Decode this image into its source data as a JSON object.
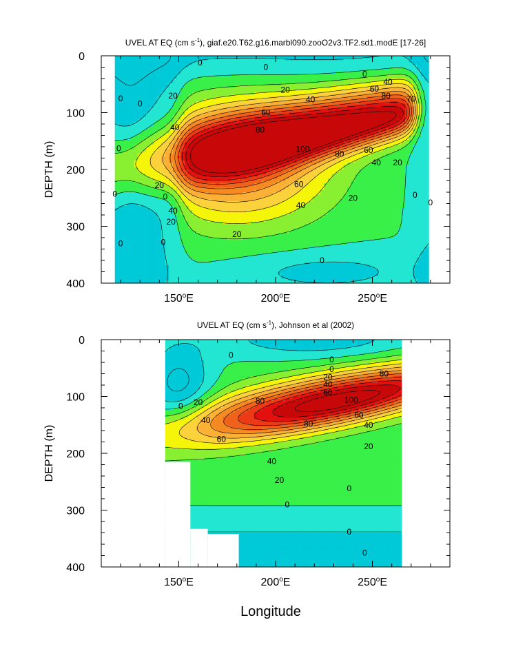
{
  "chart_data": [
    {
      "type": "contour",
      "title_prefix": "UVEL AT EQ (cm s",
      "title_sup": "-1",
      "title_suffix": "), giaf.e20.T62.g16.marbl090.zooO2v3.TF2.sd1.modE [17-26]",
      "ylabel": "DEPTH (m)",
      "xlabel": "",
      "xlim": [
        110,
        290
      ],
      "ylim": [
        400,
        0
      ],
      "xticks": [
        {
          "v": 150,
          "label": "150°E"
        },
        {
          "v": 200,
          "label": "200°E"
        },
        {
          "v": 250,
          "label": "250°E"
        }
      ],
      "yticks": [
        {
          "v": 0,
          "label": "0"
        },
        {
          "v": 100,
          "label": "100"
        },
        {
          "v": 200,
          "label": "200"
        },
        {
          "v": 300,
          "label": "300"
        },
        {
          "v": 400,
          "label": "400"
        }
      ],
      "data_xrange": [
        117,
        279
      ],
      "contour_interval": 10,
      "levels": [
        -10,
        0,
        10,
        20,
        30,
        40,
        50,
        60,
        70,
        80,
        90,
        100,
        110
      ],
      "colors": [
        "#00c9d8",
        "#22e6d2",
        "#38f048",
        "#88f030",
        "#f5f50a",
        "#fcd23c",
        "#fbb036",
        "#f58a22",
        "#f0621c",
        "#ec3a16",
        "#e41010",
        "#c80808"
      ],
      "core": {
        "lon": 237,
        "depth": 125,
        "max_speed": 110
      },
      "contour_labels": [
        {
          "text": "0",
          "lon": 120,
          "depth": 75
        },
        {
          "text": "0",
          "lon": 130,
          "depth": 84
        },
        {
          "text": "0",
          "lon": 119,
          "depth": 163
        },
        {
          "text": "0",
          "lon": 117,
          "depth": 243
        },
        {
          "text": "0",
          "lon": 120,
          "depth": 330
        },
        {
          "text": "0",
          "lon": 143,
          "depth": 248
        },
        {
          "text": "0",
          "lon": 142,
          "depth": 328
        },
        {
          "text": "0",
          "lon": 161,
          "depth": 12
        },
        {
          "text": "0",
          "lon": 195,
          "depth": 20
        },
        {
          "text": "0",
          "lon": 246,
          "depth": 32
        },
        {
          "text": "0",
          "lon": 272,
          "depth": 245
        },
        {
          "text": "0",
          "lon": 280,
          "depth": 258
        },
        {
          "text": "0",
          "lon": 224,
          "depth": 360
        },
        {
          "text": "20",
          "lon": 147,
          "depth": 70
        },
        {
          "text": "20",
          "lon": 140,
          "depth": 228
        },
        {
          "text": "20",
          "lon": 146,
          "depth": 292
        },
        {
          "text": "20",
          "lon": 205,
          "depth": 60
        },
        {
          "text": "20",
          "lon": 240,
          "depth": 250
        },
        {
          "text": "20",
          "lon": 263,
          "depth": 188
        },
        {
          "text": "20",
          "lon": 180,
          "depth": 314
        },
        {
          "text": "40",
          "lon": 218,
          "depth": 77
        },
        {
          "text": "40",
          "lon": 148,
          "depth": 126
        },
        {
          "text": "40",
          "lon": 147,
          "depth": 273
        },
        {
          "text": "40",
          "lon": 213,
          "depth": 263
        },
        {
          "text": "40",
          "lon": 252,
          "depth": 188
        },
        {
          "text": "40",
          "lon": 258,
          "depth": 46
        },
        {
          "text": "60",
          "lon": 195,
          "depth": 100
        },
        {
          "text": "60",
          "lon": 212,
          "depth": 226
        },
        {
          "text": "60",
          "lon": 248,
          "depth": 166
        },
        {
          "text": "60",
          "lon": 251,
          "depth": 58
        },
        {
          "text": "80",
          "lon": 192,
          "depth": 130
        },
        {
          "text": "80",
          "lon": 233,
          "depth": 173
        },
        {
          "text": "80",
          "lon": 257,
          "depth": 70
        },
        {
          "text": "100",
          "lon": 214,
          "depth": 164
        },
        {
          "text": "70",
          "lon": 270,
          "depth": 76
        }
      ]
    },
    {
      "type": "contour",
      "title_prefix": "UVEL AT EQ (cm s",
      "title_sup": "-1",
      "title_suffix": "), Johnson et al (2002)",
      "ylabel": "DEPTH (m)",
      "xlabel": "Longitude",
      "xlim": [
        110,
        290
      ],
      "ylim": [
        400,
        0
      ],
      "xticks": [
        {
          "v": 150,
          "label": "150°E"
        },
        {
          "v": 200,
          "label": "200°E"
        },
        {
          "v": 250,
          "label": "250°E"
        }
      ],
      "yticks": [
        {
          "v": 0,
          "label": "0"
        },
        {
          "v": 100,
          "label": "100"
        },
        {
          "v": 200,
          "label": "200"
        },
        {
          "v": 300,
          "label": "300"
        },
        {
          "v": 400,
          "label": "400"
        }
      ],
      "data_xrange": [
        143,
        265
      ],
      "missing_regions": [
        {
          "lon": [
            143,
            156
          ],
          "depth": [
            215,
            400
          ]
        },
        {
          "lon": [
            156,
            165
          ],
          "depth": [
            333,
            400
          ]
        },
        {
          "lon": [
            165,
            181
          ],
          "depth": [
            342,
            400
          ]
        }
      ],
      "contour_interval": 10,
      "levels": [
        -10,
        0,
        10,
        20,
        30,
        40,
        50,
        60,
        70,
        80,
        90,
        100,
        110
      ],
      "colors": [
        "#00c9d8",
        "#22e6d2",
        "#38f048",
        "#88f030",
        "#f5f50a",
        "#fcd23c",
        "#fbb036",
        "#f58a22",
        "#f0621c",
        "#ec3a16",
        "#e41010",
        "#c80808"
      ],
      "core": {
        "lon": 233,
        "depth": 108,
        "max_speed": 105
      },
      "contour_labels": [
        {
          "text": "0",
          "lon": 177,
          "depth": 27
        },
        {
          "text": "0",
          "lon": 151,
          "depth": 117
        },
        {
          "text": "0",
          "lon": 229,
          "depth": 35
        },
        {
          "text": "0",
          "lon": 229,
          "depth": 52
        },
        {
          "text": "0",
          "lon": 206,
          "depth": 290
        },
        {
          "text": "0",
          "lon": 238,
          "depth": 262
        },
        {
          "text": "0",
          "lon": 238,
          "depth": 338
        },
        {
          "text": "0",
          "lon": 246,
          "depth": 375
        },
        {
          "text": "20",
          "lon": 160,
          "depth": 110
        },
        {
          "text": "20",
          "lon": 227,
          "depth": 66
        },
        {
          "text": "20",
          "lon": 202,
          "depth": 247
        },
        {
          "text": "20",
          "lon": 248,
          "depth": 188
        },
        {
          "text": "40",
          "lon": 164,
          "depth": 142
        },
        {
          "text": "40",
          "lon": 227,
          "depth": 79
        },
        {
          "text": "40",
          "lon": 198,
          "depth": 214
        },
        {
          "text": "40",
          "lon": 248,
          "depth": 150
        },
        {
          "text": "60",
          "lon": 172,
          "depth": 175
        },
        {
          "text": "60",
          "lon": 227,
          "depth": 93
        },
        {
          "text": "60",
          "lon": 243,
          "depth": 133
        },
        {
          "text": "80",
          "lon": 217,
          "depth": 148
        },
        {
          "text": "80",
          "lon": 192,
          "depth": 108
        },
        {
          "text": "80",
          "lon": 256,
          "depth": 60
        },
        {
          "text": "100",
          "lon": 239,
          "depth": 106
        }
      ]
    }
  ]
}
